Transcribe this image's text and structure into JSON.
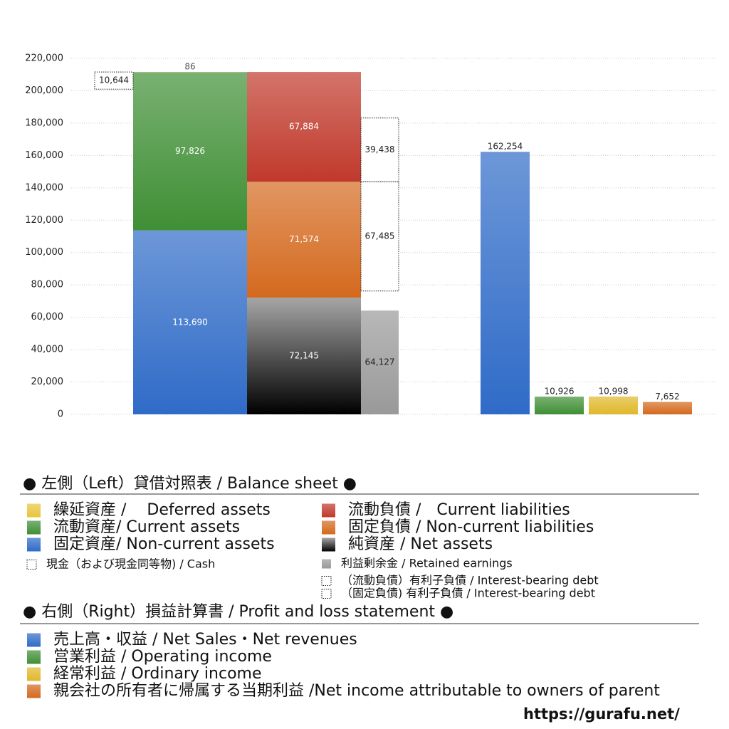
{
  "chart_data": {
    "type": "balance_pl",
    "ylim": [
      0,
      220000
    ],
    "yticks": [
      {
        "value": 0,
        "label": "0"
      },
      {
        "value": 20000,
        "label": "20,000"
      },
      {
        "value": 40000,
        "label": "40,000"
      },
      {
        "value": 60000,
        "label": "60,000"
      },
      {
        "value": 80000,
        "label": "80,000"
      },
      {
        "value": 100000,
        "label": "100,000"
      },
      {
        "value": 120000,
        "label": "120,000"
      },
      {
        "value": 140000,
        "label": "140,000"
      },
      {
        "value": 160000,
        "label": "160,000"
      },
      {
        "value": 180000,
        "label": "180,000"
      },
      {
        "value": 200000,
        "label": "200,000"
      },
      {
        "value": 220000,
        "label": "220,000"
      }
    ],
    "grid": true,
    "groups": [
      {
        "title": "● 左側（Left）貸借対照表 / Balance sheet ●",
        "series": [
          {
            "name": "繰延資産 /　 Deferred assets",
            "color": "#e8c53a",
            "values": [
              86
            ],
            "value_labels": [
              "86"
            ]
          },
          {
            "name": "流動資産/ Current assets",
            "color": "#3f8f35",
            "values": [
              97826
            ],
            "value_labels": [
              "97,826"
            ]
          },
          {
            "name": "固定資産/ Non-current assets",
            "color": "#2f6bc7",
            "values": [
              113690
            ],
            "value_labels": [
              "113,690"
            ]
          },
          {
            "name": "現金（および現金同等物) / Cash",
            "color": "#ffffff",
            "border": "dotted",
            "values": [
              10644
            ],
            "value_labels": [
              "10,644"
            ]
          },
          {
            "name": "流動負債 /　Current liabilities",
            "color": "#c0392b",
            "values": [
              67884
            ],
            "value_labels": [
              "67,884"
            ]
          },
          {
            "name": "固定負債 / Non-current liabilities",
            "color": "#d4691e",
            "values": [
              71574
            ],
            "value_labels": [
              "71,574"
            ]
          },
          {
            "name": "純資産 / Net assets",
            "color": "#000000",
            "values": [
              72145
            ],
            "value_labels": [
              "72,145"
            ]
          },
          {
            "name": "利益剰余金 / Retained earnings",
            "color": "#999999",
            "values": [
              64127
            ],
            "value_labels": [
              "64,127"
            ]
          },
          {
            "name": "（流動負債）有利子負債 / Interest-bearing debt",
            "color": "#ffffff",
            "border": "dotted",
            "values": [
              39438
            ],
            "value_labels": [
              "39,438"
            ]
          },
          {
            "name": "（固定負債) 有利子負債 / Interest-bearing debt",
            "color": "#ffffff",
            "border": "dotted",
            "values": [
              67485
            ],
            "value_labels": [
              "67,485"
            ]
          }
        ]
      },
      {
        "title": "● 右側（Right）損益計算書 / Profit and loss statement ●",
        "series": [
          {
            "name": "売上高・収益 / Net Sales・Net revenues",
            "color": "#2f6bc7",
            "values": [
              162254
            ],
            "value_labels": [
              "162,254"
            ]
          },
          {
            "name": "営業利益 / Operating income",
            "color": "#3f8f35",
            "values": [
              10926
            ],
            "value_labels": [
              "10,926"
            ]
          },
          {
            "name": "経常利益 / Ordinary income",
            "color": "#e0b82a",
            "values": [
              10998
            ],
            "value_labels": [
              "10,998"
            ]
          },
          {
            "name": "親会社の所有者に帰属する当期利益 /Net income attributable to owners of parent",
            "color": "#d4691e",
            "values": [
              7652
            ],
            "value_labels": [
              "7,652"
            ]
          }
        ]
      }
    ],
    "source": "https://gurafu.net/"
  }
}
